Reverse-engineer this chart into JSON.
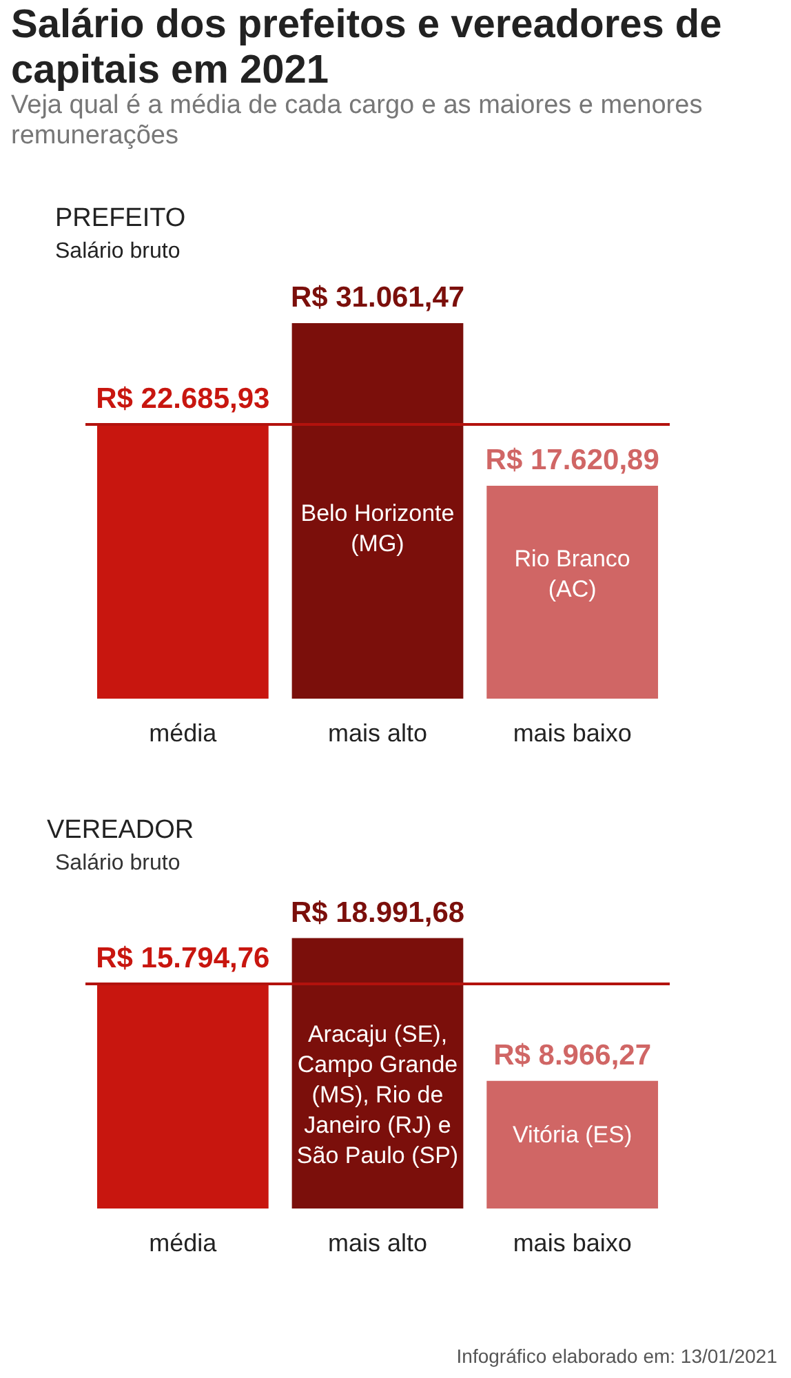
{
  "chart_data": [
    {
      "type": "bar",
      "title": "Salário dos prefeitos e vereadores de capitais em 2021",
      "subtitle": "Veja qual é a média de cada cargo e as maiores e menores remunerações",
      "categories": [
        "média",
        "mais alto",
        "mais baixo"
      ],
      "values": [
        22685.93,
        31061.47,
        17620.89
      ],
      "colors": [
        "#c8160f",
        "#7b0f0b",
        "#d06665"
      ],
      "value_labels": [
        "R$ 22.685,93",
        "R$ 31.061,47",
        "R$ 17.620,89"
      ],
      "ref_lines": [
        {
          "axis": "y",
          "value": 22685.93,
          "label": null,
          "color": "#b3120d"
        }
      ],
      "annotations": [
        "PREFEITO",
        "Salário bruto",
        "Belo Horizonte (MG)",
        "Rio Branco (AC)"
      ]
    },
    {
      "type": "bar",
      "title": "VEREADOR",
      "subtitle": "Salário bruto",
      "categories": [
        "média",
        "mais alto",
        "mais baixo"
      ],
      "values": [
        15794.76,
        18991.68,
        8966.27
      ],
      "colors": [
        "#c8160f",
        "#7b0f0b",
        "#d06665"
      ],
      "value_labels": [
        "R$ 15.794,76",
        "R$ 18.991,68",
        "R$ 8.966,27"
      ],
      "ref_lines": [
        {
          "axis": "y",
          "value": 15794.76,
          "label": null,
          "color": "#b3120d"
        }
      ],
      "annotations": [
        "Aracaju (SE), Campo Grande (MS), Rio de Janeiro (RJ) e São Paulo (SP)",
        "Vitória (ES)",
        "Infográfico elaborado em: 13/01/2021"
      ]
    }
  ]
}
